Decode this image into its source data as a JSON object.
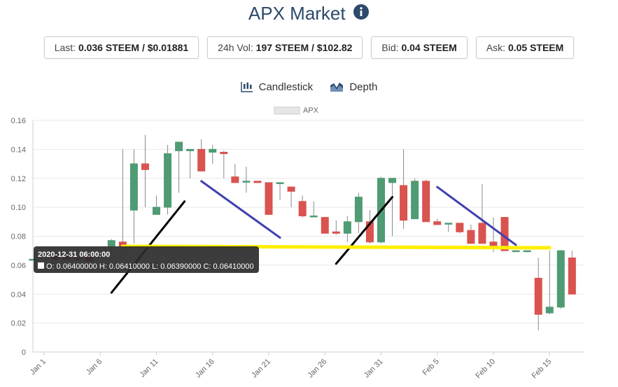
{
  "header": {
    "title": "APX Market",
    "info_icon": "info-circle-icon"
  },
  "stats": [
    {
      "label": "Last:",
      "value": "0.036 STEEM / $0.01881"
    },
    {
      "label": "24h Vol:",
      "value": "197 STEEM / $102.82"
    },
    {
      "label": "Bid:",
      "value": "0.04 STEEM"
    },
    {
      "label": "Ask:",
      "value": "0.05 STEEM"
    }
  ],
  "tabs": [
    {
      "label": "Candlestick",
      "icon": "candlestick-chart-icon"
    },
    {
      "label": "Depth",
      "icon": "depth-chart-icon"
    }
  ],
  "colors": {
    "up": "#4f9b74",
    "down": "#d9534f",
    "title": "#2c4a6b",
    "tooltip_bg": "#2b2b2b"
  },
  "chart_data": {
    "type": "candlestick",
    "legend": [
      "APX"
    ],
    "ylim": [
      0,
      0.16
    ],
    "yticks": [
      "0",
      "0.02",
      "0.04",
      "0.06",
      "0.08",
      "0.10",
      "0.12",
      "0.14",
      "0.16"
    ],
    "xticks": [
      "Jan 1",
      "Jan 6",
      "Jan 11",
      "Jan 16",
      "Jan 21",
      "Jan 26",
      "Jan 31",
      "Feb 5",
      "Feb 10",
      "Feb 15"
    ],
    "tooltip": {
      "date": "2020-12-31 06:00:00",
      "text": "O: 0.06400000  H: 0.06410000  L: 0.06390000  C: 0.06410000"
    },
    "candles": [
      {
        "d": "2020-12-31",
        "o": 0.064,
        "h": 0.0641,
        "l": 0.0639,
        "c": 0.0641
      },
      {
        "d": "2021-01-02",
        "o": 0.066,
        "h": 0.066,
        "l": 0.064,
        "c": 0.064
      },
      {
        "d": "2021-01-03",
        "o": 0.066,
        "h": 0.066,
        "l": 0.064,
        "c": 0.064
      },
      {
        "d": "2021-01-04",
        "o": 0.065,
        "h": 0.066,
        "l": 0.063,
        "c": 0.064
      },
      {
        "d": "2021-01-05",
        "o": 0.066,
        "h": 0.066,
        "l": 0.063,
        "c": 0.063
      },
      {
        "d": "2021-01-06",
        "o": 0.068,
        "h": 0.068,
        "l": 0.068,
        "c": 0.068
      },
      {
        "d": "2021-01-07",
        "o": 0.073,
        "h": 0.078,
        "l": 0.07,
        "c": 0.077
      },
      {
        "d": "2021-01-08",
        "o": 0.076,
        "h": 0.14,
        "l": 0.07,
        "c": 0.073
      },
      {
        "d": "2021-01-09",
        "o": 0.098,
        "h": 0.14,
        "l": 0.075,
        "c": 0.13
      },
      {
        "d": "2021-01-10",
        "o": 0.13,
        "h": 0.15,
        "l": 0.1,
        "c": 0.126
      },
      {
        "d": "2021-01-11",
        "o": 0.095,
        "h": 0.108,
        "l": 0.095,
        "c": 0.1
      },
      {
        "d": "2021-01-12",
        "o": 0.1,
        "h": 0.143,
        "l": 0.095,
        "c": 0.137
      },
      {
        "d": "2021-01-13",
        "o": 0.139,
        "h": 0.145,
        "l": 0.11,
        "c": 0.145
      },
      {
        "d": "2021-01-14",
        "o": 0.139,
        "h": 0.14,
        "l": 0.12,
        "c": 0.14
      },
      {
        "d": "2021-01-15",
        "o": 0.14,
        "h": 0.147,
        "l": 0.125,
        "c": 0.125
      },
      {
        "d": "2021-01-16",
        "o": 0.138,
        "h": 0.143,
        "l": 0.13,
        "c": 0.14
      },
      {
        "d": "2021-01-17",
        "o": 0.138,
        "h": 0.139,
        "l": 0.12,
        "c": 0.137
      },
      {
        "d": "2021-01-18",
        "o": 0.121,
        "h": 0.13,
        "l": 0.117,
        "c": 0.117
      },
      {
        "d": "2021-01-19",
        "o": 0.118,
        "h": 0.128,
        "l": 0.11,
        "c": 0.118
      },
      {
        "d": "2021-01-20",
        "o": 0.118,
        "h": 0.118,
        "l": 0.117,
        "c": 0.117
      },
      {
        "d": "2021-01-21",
        "o": 0.117,
        "h": 0.117,
        "l": 0.095,
        "c": 0.095
      },
      {
        "d": "2021-01-22",
        "o": 0.117,
        "h": 0.117,
        "l": 0.105,
        "c": 0.117
      },
      {
        "d": "2021-01-23",
        "o": 0.114,
        "h": 0.114,
        "l": 0.1,
        "c": 0.111
      },
      {
        "d": "2021-01-24",
        "o": 0.104,
        "h": 0.108,
        "l": 0.093,
        "c": 0.094
      },
      {
        "d": "2021-01-25",
        "o": 0.094,
        "h": 0.104,
        "l": 0.093,
        "c": 0.094
      },
      {
        "d": "2021-01-26",
        "o": 0.093,
        "h": 0.093,
        "l": 0.082,
        "c": 0.082
      },
      {
        "d": "2021-01-27",
        "o": 0.083,
        "h": 0.091,
        "l": 0.081,
        "c": 0.082
      },
      {
        "d": "2021-01-28",
        "o": 0.082,
        "h": 0.094,
        "l": 0.076,
        "c": 0.09
      },
      {
        "d": "2021-01-29",
        "o": 0.09,
        "h": 0.11,
        "l": 0.082,
        "c": 0.107
      },
      {
        "d": "2021-01-30",
        "o": 0.09,
        "h": 0.098,
        "l": 0.075,
        "c": 0.076
      },
      {
        "d": "2021-01-31",
        "o": 0.076,
        "h": 0.121,
        "l": 0.075,
        "c": 0.12
      },
      {
        "d": "2021-02-01",
        "o": 0.117,
        "h": 0.12,
        "l": 0.08,
        "c": 0.12
      },
      {
        "d": "2021-02-02",
        "o": 0.115,
        "h": 0.14,
        "l": 0.085,
        "c": 0.091
      },
      {
        "d": "2021-02-03",
        "o": 0.092,
        "h": 0.12,
        "l": 0.092,
        "c": 0.118
      },
      {
        "d": "2021-02-04",
        "o": 0.118,
        "h": 0.119,
        "l": 0.09,
        "c": 0.09
      },
      {
        "d": "2021-02-05",
        "o": 0.09,
        "h": 0.092,
        "l": 0.088,
        "c": 0.088
      },
      {
        "d": "2021-02-06",
        "o": 0.089,
        "h": 0.089,
        "l": 0.083,
        "c": 0.089
      },
      {
        "d": "2021-02-07",
        "o": 0.089,
        "h": 0.089,
        "l": 0.082,
        "c": 0.083
      },
      {
        "d": "2021-02-08",
        "o": 0.084,
        "h": 0.088,
        "l": 0.075,
        "c": 0.075
      },
      {
        "d": "2021-02-09",
        "o": 0.089,
        "h": 0.116,
        "l": 0.075,
        "c": 0.075
      },
      {
        "d": "2021-02-10",
        "o": 0.076,
        "h": 0.093,
        "l": 0.069,
        "c": 0.072
      },
      {
        "d": "2021-02-11",
        "o": 0.093,
        "h": 0.093,
        "l": 0.07,
        "c": 0.07
      },
      {
        "d": "2021-02-12",
        "o": 0.07,
        "h": 0.07,
        "l": 0.07,
        "c": 0.07
      },
      {
        "d": "2021-02-13",
        "o": 0.07,
        "h": 0.07,
        "l": 0.069,
        "c": 0.07
      },
      {
        "d": "2021-02-14",
        "o": 0.051,
        "h": 0.065,
        "l": 0.015,
        "c": 0.026
      },
      {
        "d": "2021-02-15",
        "o": 0.027,
        "h": 0.07,
        "l": 0.026,
        "c": 0.031
      },
      {
        "d": "2021-02-16",
        "o": 0.031,
        "h": 0.07,
        "l": 0.03,
        "c": 0.07
      },
      {
        "d": "2021-02-17",
        "o": 0.065,
        "h": 0.07,
        "l": 0.04,
        "c": 0.04
      }
    ],
    "annotations": [
      {
        "color": "#000000",
        "from": {
          "d": "2021-01-07",
          "v": 0.041
        },
        "to": {
          "d": "2021-01-13.5",
          "v": 0.104
        }
      },
      {
        "color": "#4040b0",
        "from": {
          "d": "2021-01-15",
          "v": 0.118
        },
        "to": {
          "d": "2021-01-22",
          "v": 0.079
        }
      },
      {
        "color": "#000000",
        "from": {
          "d": "2021-01-27",
          "v": 0.061
        },
        "to": {
          "d": "2021-02-01",
          "v": 0.107
        }
      },
      {
        "color": "#4040b0",
        "from": {
          "d": "2021-02-05",
          "v": 0.114
        },
        "to": {
          "d": "2021-02-12",
          "v": 0.074
        }
      },
      {
        "color": "#ffee00",
        "from": {
          "d": "2021-01-08",
          "v": 0.073
        },
        "to": {
          "d": "2021-02-15",
          "v": 0.072
        }
      }
    ]
  }
}
